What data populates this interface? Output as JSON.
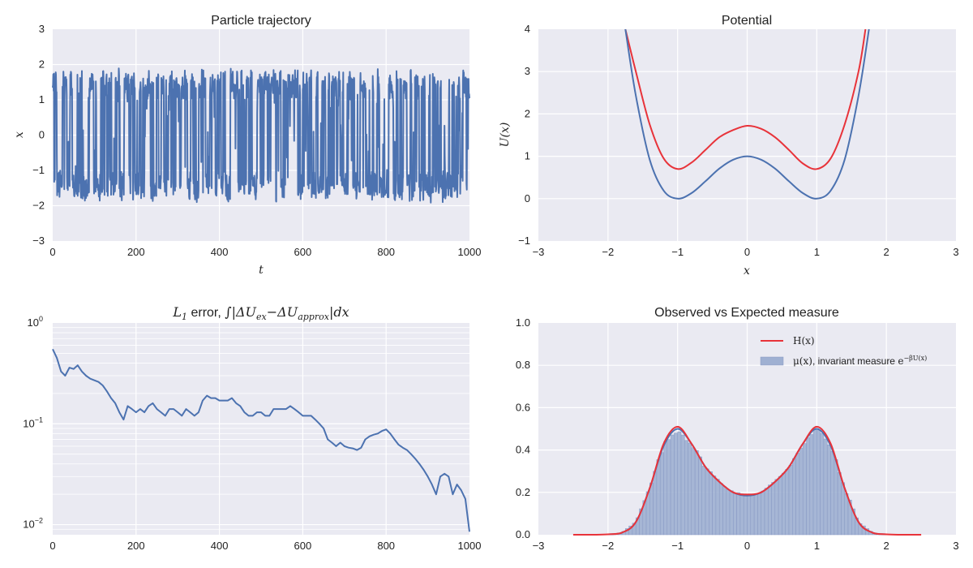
{
  "colors": {
    "blue": "#4c72b0",
    "red": "#e8333a",
    "bg": "#eaeaf2",
    "grid": "#ffffff",
    "hist": "#9fb0d2"
  },
  "chart_data": [
    {
      "id": "trajectory",
      "type": "line",
      "title": "Particle trajectory",
      "xlabel": "t",
      "ylabel": "x",
      "xlim": [
        0,
        1000
      ],
      "ylim": [
        -3,
        3
      ],
      "xticks": [
        0,
        200,
        400,
        600,
        800,
        1000
      ],
      "yticks": [
        -3,
        -2,
        -1,
        0,
        1,
        2,
        3
      ],
      "grid": true,
      "series": [
        {
          "color": "#4c72b0",
          "description": "dense noisy signal hopping between wells near x=-1.5 and x=1.5",
          "range": [
            -2,
            2
          ]
        }
      ]
    },
    {
      "id": "potential",
      "type": "line",
      "title": "Potential",
      "xlabel": "x",
      "ylabel": "U(x)",
      "xlim": [
        -3,
        3
      ],
      "ylim": [
        -1,
        4
      ],
      "xticks": [
        -3,
        -2,
        -1,
        0,
        1,
        2,
        3
      ],
      "yticks": [
        -1,
        0,
        1,
        2,
        3,
        4
      ],
      "grid": true,
      "series": [
        {
          "color": "#e8333a",
          "x": [
            -1.75,
            -1.6,
            -1.4,
            -1.2,
            -1.0,
            -0.8,
            -0.6,
            -0.4,
            -0.2,
            0.0,
            0.2,
            0.4,
            0.6,
            0.8,
            1.0,
            1.2,
            1.4,
            1.6,
            1.7
          ],
          "y": [
            4.0,
            3.0,
            1.75,
            0.95,
            0.7,
            0.85,
            1.15,
            1.45,
            1.62,
            1.72,
            1.65,
            1.45,
            1.15,
            0.83,
            0.7,
            0.95,
            1.75,
            3.0,
            4.0
          ]
        },
        {
          "color": "#4c72b0",
          "x": [
            -1.75,
            -1.6,
            -1.4,
            -1.2,
            -1.0,
            -0.8,
            -0.6,
            -0.4,
            -0.2,
            0.0,
            0.2,
            0.4,
            0.6,
            0.8,
            1.0,
            1.2,
            1.4,
            1.6,
            1.75
          ],
          "y": [
            4.0,
            2.43,
            0.92,
            0.19,
            0.0,
            0.13,
            0.41,
            0.71,
            0.92,
            1.0,
            0.92,
            0.71,
            0.41,
            0.13,
            0.0,
            0.19,
            0.92,
            2.43,
            4.0
          ]
        }
      ]
    },
    {
      "id": "error",
      "type": "line",
      "title_prefix": "L",
      "title_sub": "1",
      "title_text": " error, ",
      "title_integral": "∫|ΔU",
      "title_sub2": "ex",
      "title_mid": "−ΔU",
      "title_sub3": "approx",
      "title_end": "|dx",
      "xlim": [
        0,
        1000
      ],
      "ylim_log10": [
        -2.1,
        0
      ],
      "yscale": "log",
      "xticks": [
        0,
        200,
        400,
        600,
        800,
        1000
      ],
      "yticks_labels": [
        "10",
        "10",
        "10"
      ],
      "yticks_exp": [
        "-2",
        "-1",
        "0"
      ],
      "grid": true,
      "series": [
        {
          "color": "#4c72b0",
          "x": [
            0,
            10,
            20,
            30,
            40,
            50,
            60,
            70,
            80,
            90,
            100,
            110,
            120,
            130,
            140,
            150,
            160,
            170,
            180,
            190,
            200,
            210,
            220,
            230,
            240,
            250,
            260,
            270,
            280,
            290,
            300,
            310,
            320,
            330,
            340,
            350,
            360,
            370,
            380,
            390,
            400,
            410,
            420,
            430,
            440,
            450,
            460,
            470,
            480,
            490,
            500,
            510,
            520,
            530,
            540,
            550,
            560,
            570,
            580,
            590,
            600,
            610,
            620,
            630,
            640,
            650,
            660,
            670,
            680,
            690,
            700,
            710,
            720,
            730,
            740,
            750,
            760,
            770,
            780,
            790,
            800,
            810,
            820,
            830,
            840,
            850,
            860,
            870,
            880,
            890,
            900,
            910,
            920,
            930,
            940,
            950,
            960,
            970,
            980,
            990,
            1000
          ],
          "y": [
            0.55,
            0.45,
            0.33,
            0.3,
            0.36,
            0.35,
            0.38,
            0.33,
            0.3,
            0.28,
            0.27,
            0.26,
            0.24,
            0.21,
            0.18,
            0.16,
            0.13,
            0.11,
            0.15,
            0.14,
            0.13,
            0.14,
            0.13,
            0.15,
            0.16,
            0.14,
            0.13,
            0.12,
            0.14,
            0.14,
            0.13,
            0.12,
            0.14,
            0.13,
            0.12,
            0.13,
            0.17,
            0.19,
            0.18,
            0.18,
            0.17,
            0.17,
            0.17,
            0.18,
            0.16,
            0.15,
            0.13,
            0.12,
            0.12,
            0.13,
            0.13,
            0.12,
            0.12,
            0.14,
            0.14,
            0.14,
            0.14,
            0.15,
            0.14,
            0.13,
            0.12,
            0.12,
            0.12,
            0.11,
            0.1,
            0.09,
            0.07,
            0.065,
            0.06,
            0.065,
            0.06,
            0.058,
            0.057,
            0.055,
            0.058,
            0.07,
            0.075,
            0.078,
            0.08,
            0.085,
            0.088,
            0.08,
            0.07,
            0.062,
            0.058,
            0.055,
            0.05,
            0.045,
            0.04,
            0.035,
            0.03,
            0.025,
            0.02,
            0.03,
            0.032,
            0.03,
            0.02,
            0.025,
            0.022,
            0.018,
            0.0085
          ]
        }
      ]
    },
    {
      "id": "measure",
      "type": "bar",
      "title": "Observed vs Expected measure",
      "xlim": [
        -3,
        3
      ],
      "ylim": [
        0,
        1
      ],
      "xticks": [
        -3,
        -2,
        -1,
        0,
        1,
        2,
        3
      ],
      "yticks": [
        0.0,
        0.2,
        0.4,
        0.6,
        0.8,
        1.0
      ],
      "grid": true,
      "legend_position": "top-right",
      "legend": [
        {
          "label": "H(x)",
          "kind": "line",
          "color": "#e8333a"
        },
        {
          "label_math": "μ(x)",
          "label_text": ", invariant measure ",
          "label_exp_base": "e",
          "label_exp": "−βU(x)",
          "kind": "patch",
          "color": "#9fb0d2"
        }
      ],
      "histogram": {
        "bin_width": 0.05,
        "x_start": -1.9,
        "x_end": 1.9
      },
      "series": [
        {
          "name": "H(x)",
          "color": "#e8333a",
          "x": [
            -2.5,
            -2.2,
            -2.0,
            -1.8,
            -1.6,
            -1.4,
            -1.2,
            -1.0,
            -0.8,
            -0.6,
            -0.4,
            -0.2,
            0.0,
            0.2,
            0.4,
            0.6,
            0.8,
            1.0,
            1.2,
            1.4,
            1.6,
            1.8,
            2.0,
            2.2,
            2.5
          ],
          "y": [
            0.0,
            0.0,
            0.002,
            0.01,
            0.06,
            0.22,
            0.43,
            0.51,
            0.43,
            0.32,
            0.25,
            0.2,
            0.19,
            0.2,
            0.25,
            0.32,
            0.43,
            0.51,
            0.43,
            0.22,
            0.06,
            0.01,
            0.002,
            0.0,
            0.0
          ]
        },
        {
          "name": "invariant",
          "color": "#4c72b0",
          "x": [
            -2.0,
            -1.8,
            -1.6,
            -1.4,
            -1.2,
            -1.0,
            -0.8,
            -0.6,
            -0.4,
            -0.2,
            0.0,
            0.2,
            0.4,
            0.6,
            0.8,
            1.0,
            1.2,
            1.4,
            1.6,
            1.8,
            2.0
          ],
          "y": [
            0.002,
            0.01,
            0.06,
            0.22,
            0.42,
            0.5,
            0.43,
            0.32,
            0.25,
            0.2,
            0.185,
            0.2,
            0.25,
            0.32,
            0.43,
            0.5,
            0.42,
            0.22,
            0.06,
            0.01,
            0.002
          ]
        }
      ]
    }
  ]
}
